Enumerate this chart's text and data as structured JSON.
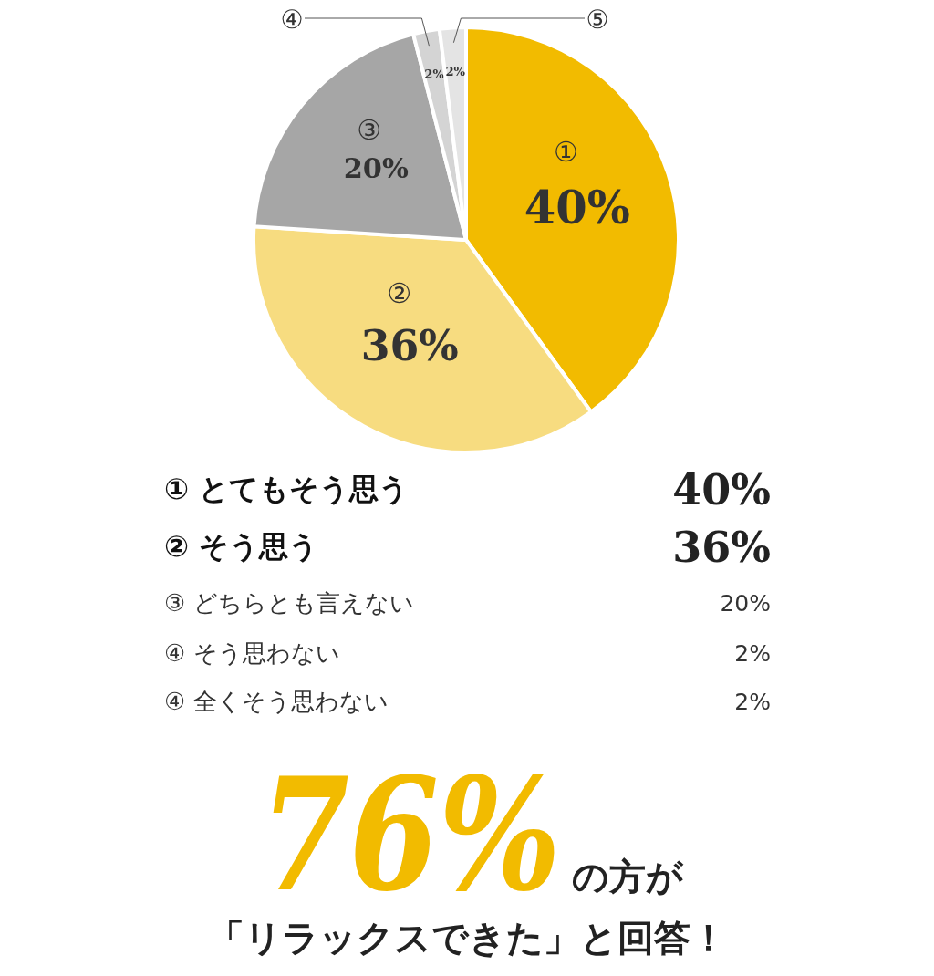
{
  "chart_data": {
    "type": "pie",
    "categories": [
      "①",
      "②",
      "③",
      "④",
      "⑤"
    ],
    "values": [
      40,
      36,
      20,
      2,
      2
    ],
    "colors": [
      "#f2bb00",
      "#f7dc80",
      "#a6a6a6",
      "#d4d4d4",
      "#e4e4e4"
    ],
    "value_labels": [
      "40%",
      "36%",
      "20%",
      "2%",
      "2%"
    ],
    "annotations": [
      "① とてもそう思う",
      "② そう思う",
      "③ どちらとも言えない",
      "④ そう思わない",
      "④ 全くそう思わない",
      "76%",
      "の方が",
      "「リラックスできた」と回答！"
    ]
  }
}
